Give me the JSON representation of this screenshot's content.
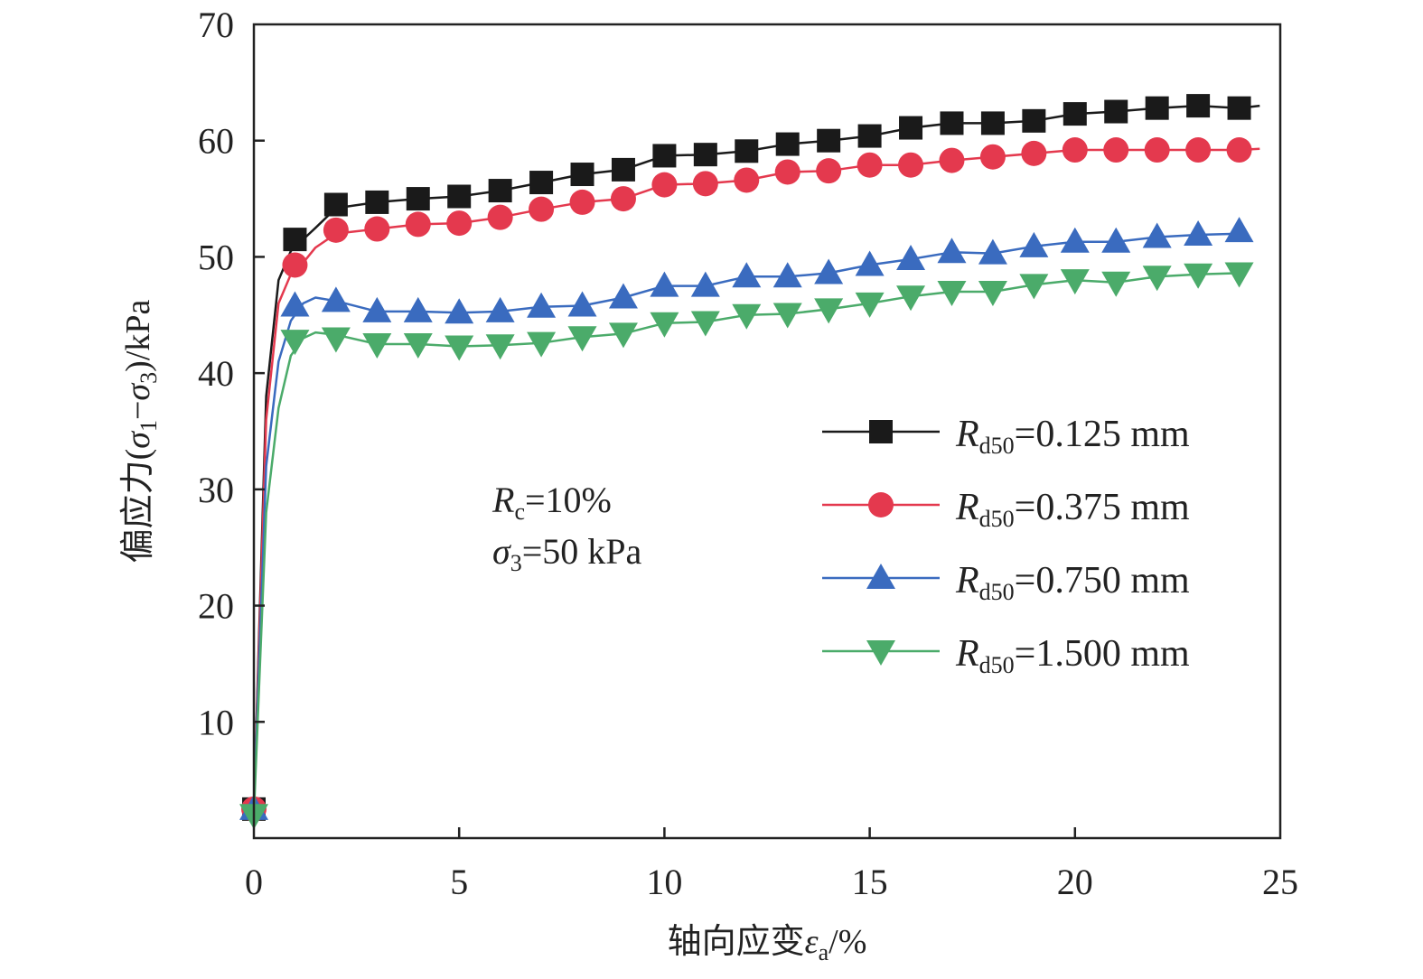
{
  "chart_data": {
    "type": "line",
    "xlabel": {
      "prefix": "轴向应变",
      "symbol": "ε",
      "sub": "a",
      "suffix": "/%"
    },
    "ylabel": {
      "prefix": "偏应力(",
      "s1": "σ",
      "s1sub": "1",
      "minus": "−",
      "s3": "σ",
      "s3sub": "3",
      "suffix": ")/kPa"
    },
    "xlim": [
      0,
      25
    ],
    "ylim": [
      0,
      70
    ],
    "x_ticks": [
      0,
      5,
      10,
      15,
      20,
      25
    ],
    "y_ticks": [
      10,
      20,
      30,
      40,
      50,
      60,
      70
    ],
    "x_tick_labels": [
      "0",
      "5",
      "10",
      "15",
      "20",
      "25"
    ],
    "y_tick_labels": [
      "10",
      "20",
      "30",
      "40",
      "50",
      "60",
      "70"
    ],
    "legend_position": "right-middle",
    "annotation": {
      "line1": {
        "symbol": "R",
        "sub": "c",
        "text": "=10%"
      },
      "line2": {
        "symbol": "σ",
        "sub": "3",
        "text": "=50 kPa"
      }
    },
    "series": [
      {
        "name": "Rd50=0.125 mm",
        "label_symbol": "R",
        "label_sub": "d50",
        "label_value": "=0.125 mm",
        "color": "#1a1a1a",
        "marker": "square",
        "x": [
          0,
          1,
          2,
          3,
          4,
          5,
          6,
          7,
          8,
          9,
          10,
          11,
          12,
          13,
          14,
          15,
          16,
          17,
          18,
          19,
          20,
          21,
          22,
          23,
          24
        ],
        "y": [
          2.5,
          51.5,
          54.5,
          54.7,
          55.0,
          55.2,
          55.7,
          56.4,
          57.1,
          57.5,
          58.7,
          58.8,
          59.1,
          59.7,
          60.0,
          60.4,
          61.1,
          61.5,
          61.5,
          61.7,
          62.3,
          62.5,
          62.8,
          63.0,
          62.8
        ],
        "curve_x": [
          0,
          0.3,
          0.6,
          0.9,
          1.2,
          1.5,
          2.0,
          3,
          4,
          5,
          6,
          7,
          8,
          9,
          10,
          11,
          12,
          13,
          14,
          15,
          16,
          17,
          18,
          19,
          20,
          21,
          22,
          23,
          24,
          24.5
        ],
        "curve_y": [
          2.5,
          38,
          48,
          50.5,
          51.5,
          52.5,
          54.2,
          54.7,
          55.0,
          55.2,
          55.7,
          56.4,
          57.1,
          57.5,
          58.7,
          58.8,
          59.1,
          59.7,
          60.0,
          60.4,
          61.1,
          61.5,
          61.5,
          61.7,
          62.3,
          62.5,
          62.8,
          63.0,
          62.8,
          63.0
        ]
      },
      {
        "name": "Rd50=0.375 mm",
        "label_symbol": "R",
        "label_sub": "d50",
        "label_value": "=0.375 mm",
        "color": "#e4394e",
        "marker": "circle",
        "x": [
          0,
          1,
          2,
          3,
          4,
          5,
          6,
          7,
          8,
          9,
          10,
          11,
          12,
          13,
          14,
          15,
          16,
          17,
          18,
          19,
          20,
          21,
          22,
          23,
          24
        ],
        "y": [
          2.5,
          49.3,
          52.3,
          52.4,
          52.8,
          52.9,
          53.4,
          54.1,
          54.7,
          55.0,
          56.2,
          56.3,
          56.6,
          57.3,
          57.4,
          57.9,
          57.9,
          58.3,
          58.6,
          58.9,
          59.2,
          59.2,
          59.2,
          59.2,
          59.2
        ],
        "curve_x": [
          0,
          0.3,
          0.6,
          0.9,
          1.2,
          1.5,
          2.0,
          3,
          4,
          5,
          6,
          7,
          8,
          9,
          10,
          11,
          12,
          13,
          14,
          15,
          16,
          17,
          18,
          19,
          20,
          21,
          22,
          23,
          24,
          24.5
        ],
        "curve_y": [
          2.5,
          36,
          46,
          48.5,
          49.5,
          50.8,
          52.0,
          52.4,
          52.8,
          52.9,
          53.4,
          54.1,
          54.7,
          55.0,
          56.2,
          56.3,
          56.6,
          57.3,
          57.4,
          57.9,
          57.9,
          58.3,
          58.6,
          58.9,
          59.2,
          59.2,
          59.2,
          59.2,
          59.2,
          59.3
        ]
      },
      {
        "name": "Rd50=0.750 mm",
        "label_symbol": "R",
        "label_sub": "d50",
        "label_value": "=0.750 mm",
        "color": "#3a6bbf",
        "marker": "triangle-up",
        "x": [
          0,
          1,
          2,
          3,
          4,
          5,
          6,
          7,
          8,
          9,
          10,
          11,
          12,
          13,
          14,
          15,
          16,
          17,
          18,
          19,
          20,
          21,
          22,
          23,
          24
        ],
        "y": [
          2.5,
          45.8,
          46.2,
          45.3,
          45.3,
          45.2,
          45.3,
          45.7,
          45.8,
          46.5,
          47.5,
          47.5,
          48.3,
          48.3,
          48.6,
          49.3,
          49.8,
          50.4,
          50.3,
          50.9,
          51.3,
          51.3,
          51.7,
          51.9,
          52.2
        ],
        "curve_x": [
          0,
          0.3,
          0.6,
          0.9,
          1.2,
          1.5,
          2.0,
          3,
          4,
          5,
          6,
          7,
          8,
          9,
          10,
          11,
          12,
          13,
          14,
          15,
          16,
          17,
          18,
          19,
          20,
          21,
          22,
          23,
          24
        ],
        "curve_y": [
          2.5,
          32,
          41,
          44.5,
          46.0,
          46.5,
          46.2,
          45.3,
          45.3,
          45.2,
          45.3,
          45.7,
          45.8,
          46.5,
          47.5,
          47.5,
          48.3,
          48.3,
          48.6,
          49.3,
          49.8,
          50.4,
          50.3,
          50.9,
          51.3,
          51.3,
          51.7,
          51.9,
          52.0
        ]
      },
      {
        "name": "Rd50=1.500 mm",
        "label_symbol": "R",
        "label_sub": "d50",
        "label_value": "=1.500 mm",
        "color": "#4bab6a",
        "marker": "triangle-down",
        "x": [
          0,
          1,
          2,
          3,
          4,
          5,
          6,
          7,
          8,
          9,
          10,
          11,
          12,
          13,
          14,
          15,
          16,
          17,
          18,
          19,
          20,
          21,
          22,
          23,
          24
        ],
        "y": [
          2.0,
          42.8,
          43.0,
          42.5,
          42.5,
          42.3,
          42.4,
          42.6,
          43.1,
          43.4,
          44.3,
          44.4,
          45.0,
          45.1,
          45.5,
          46.0,
          46.6,
          47.0,
          47.0,
          47.6,
          48.0,
          47.8,
          48.3,
          48.5,
          48.6
        ],
        "curve_x": [
          0,
          0.3,
          0.6,
          0.9,
          1.2,
          1.5,
          2.0,
          3,
          4,
          5,
          6,
          7,
          8,
          9,
          10,
          11,
          12,
          13,
          14,
          15,
          16,
          17,
          18,
          19,
          20,
          21,
          22,
          23,
          24
        ],
        "curve_y": [
          2.0,
          28,
          37,
          41.5,
          43.0,
          43.5,
          43.3,
          42.5,
          42.5,
          42.3,
          42.4,
          42.6,
          43.1,
          43.4,
          44.3,
          44.4,
          45.0,
          45.1,
          45.5,
          46.0,
          46.6,
          47.0,
          47.0,
          47.6,
          48.0,
          47.8,
          48.3,
          48.5,
          48.6
        ]
      }
    ]
  }
}
